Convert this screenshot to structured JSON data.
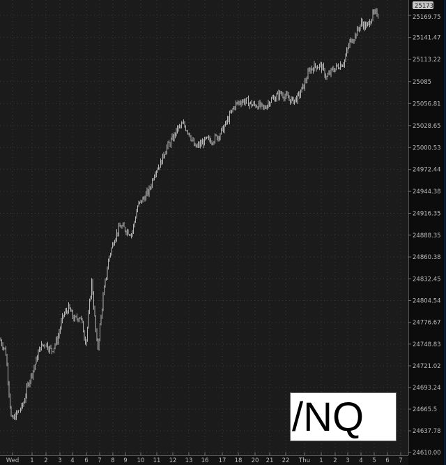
{
  "chart_data": {
    "type": "bar",
    "subtype": "ohlc",
    "symbol": "/NQ",
    "last_price_badge": "25173",
    "colors": {
      "bars": "#b4b4b4",
      "background": "#1b1b1b",
      "axis_background": "#0c0c0c",
      "grid": "#3a3a3a"
    },
    "grid": true,
    "y_ticks": [
      "25169.75",
      "25141.47",
      "25113.22",
      "25085",
      "25056.81",
      "25028.65",
      "25000.53",
      "24972.44",
      "24944.38",
      "24916.35",
      "24888.35",
      "24860.38",
      "24832.45",
      "24804.54",
      "24776.67",
      "24748.83",
      "24721.02",
      "24693.24",
      "24665.5",
      "24637.78",
      "24610.00"
    ],
    "ylim": [
      24610.0,
      25169.75
    ],
    "x_ticks": [
      "Wed",
      "1",
      "2",
      "3",
      "4",
      "6",
      "7",
      "8",
      "9",
      "10",
      "11",
      "12",
      "13",
      "16",
      "17",
      "18",
      "20",
      "21",
      "22",
      "Thu",
      "1",
      "2",
      "3",
      "4",
      "5",
      "6",
      "7"
    ],
    "price_path": [
      24755,
      24740,
      24650,
      24660,
      24670,
      24700,
      24720,
      24745,
      24750,
      24740,
      24755,
      24785,
      24795,
      24780,
      24785,
      24750,
      24830,
      24740,
      24810,
      24860,
      24885,
      24900,
      24895,
      24890,
      24925,
      24935,
      24945,
      24970,
      24980,
      25000,
      25010,
      25025,
      25030,
      25020,
      25000,
      25005,
      25010,
      25010,
      25015,
      25025,
      25040,
      25055,
      25060,
      25060,
      25055,
      25055,
      25050,
      25060,
      25065,
      25070,
      25065,
      25060,
      25065,
      25080,
      25100,
      25105,
      25105,
      25090,
      25100,
      25105,
      25110,
      25135,
      25145,
      25160,
      25155,
      25170,
      25173
    ]
  }
}
